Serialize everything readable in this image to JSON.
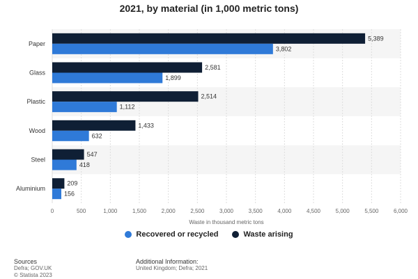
{
  "chart_data": {
    "type": "bar",
    "orientation": "horizontal",
    "title": "2021, by material (in 1,000 metric tons)",
    "xlabel": "Waste in thousand metric tons",
    "ylabel": "",
    "categories": [
      "Paper",
      "Glass",
      "Plastic",
      "Wood",
      "Steel",
      "Aluminium"
    ],
    "series": [
      {
        "name": "Waste arising",
        "color": "#0f1f35",
        "values": [
          5389,
          2581,
          2514,
          1433,
          547,
          209
        ]
      },
      {
        "name": "Recovered or recycled",
        "color": "#2f7ad8",
        "values": [
          3802,
          1899,
          1112,
          632,
          418,
          156
        ]
      }
    ],
    "xlim": [
      0,
      6000
    ],
    "x_ticks": [
      0,
      500,
      1000,
      1500,
      2000,
      2500,
      3000,
      3500,
      4000,
      4500,
      5000,
      5500,
      6000
    ],
    "grid": true,
    "legend_position": "bottom",
    "legend_order": [
      "Recovered or recycled",
      "Waste arising"
    ]
  },
  "footer": {
    "sources_header": "Sources",
    "sources_lines": [
      "Defra; GOV.UK",
      "© Statista 2023"
    ],
    "info_header": "Additional Information:",
    "info_lines": [
      "United Kingdom; Defra; 2021"
    ]
  }
}
